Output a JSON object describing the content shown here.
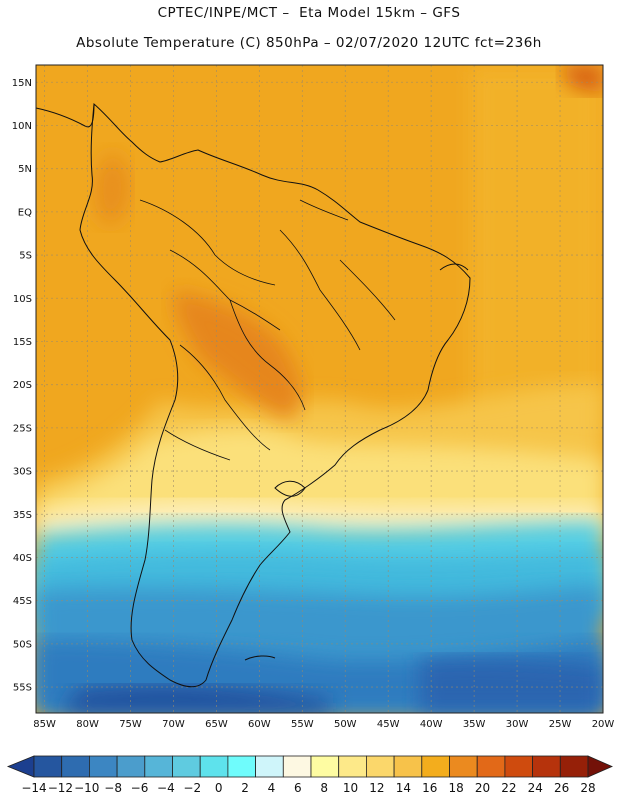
{
  "header": {
    "line1": "CPTEC/INPE/MCT –  Eta Model 15km – GFS",
    "line2": "Absolute Temperature (C) 850hPa – 02/07/2020 12UTC fct=236h"
  },
  "map": {
    "lat_labels": [
      "15N",
      "10N",
      "5N",
      "EQ",
      "5S",
      "10S",
      "15S",
      "20S",
      "25S",
      "30S",
      "35S",
      "40S",
      "45S",
      "50S",
      "55S"
    ],
    "lat_values": [
      15,
      10,
      5,
      0,
      -5,
      -10,
      -15,
      -20,
      -25,
      -30,
      -35,
      -40,
      -45,
      -50,
      -55
    ],
    "lon_labels": [
      "85W",
      "80W",
      "75W",
      "70W",
      "65W",
      "60W",
      "55W",
      "50W",
      "45W",
      "40W",
      "35W",
      "30W",
      "25W",
      "20W"
    ],
    "lon_values": [
      -85,
      -80,
      -75,
      -70,
      -65,
      -60,
      -55,
      -50,
      -45,
      -40,
      -35,
      -30,
      -25,
      -20
    ],
    "lat_range": [
      -58,
      17
    ],
    "lon_range": [
      -86,
      -20
    ]
  },
  "colorbar": {
    "labels": [
      "-14",
      "-12",
      "-10",
      "-8",
      "-6",
      "-4",
      "-2",
      "0",
      "2",
      "4",
      "6",
      "8",
      "10",
      "12",
      "14",
      "16",
      "18",
      "20",
      "22",
      "24",
      "26",
      "28"
    ],
    "colors": [
      "#1c3f8f",
      "#25569f",
      "#2e6cb0",
      "#3c86c2",
      "#4b9dcc",
      "#56b5d8",
      "#5fcbe0",
      "#5ee2ec",
      "#6ffcfc",
      "#cff5fa",
      "#fdf8e2",
      "#fefca2",
      "#fde989",
      "#fbd76b",
      "#f7c24a",
      "#f3ad1d",
      "#eb8a1f",
      "#e26918",
      "#cf4b0e",
      "#b6330c",
      "#962008",
      "#731108"
    ]
  },
  "region_colors": {
    "warm": "#f2a91f",
    "hot": "#e8891f",
    "mild": "#f4bf42",
    "cool_yellow": "#fbe27e",
    "pale": "#fdf2c2",
    "cyan": "#47d7ea",
    "mid_blue": "#3ea6d4",
    "deep_blue": "#2a65b0",
    "darkest": "#1e4492"
  }
}
